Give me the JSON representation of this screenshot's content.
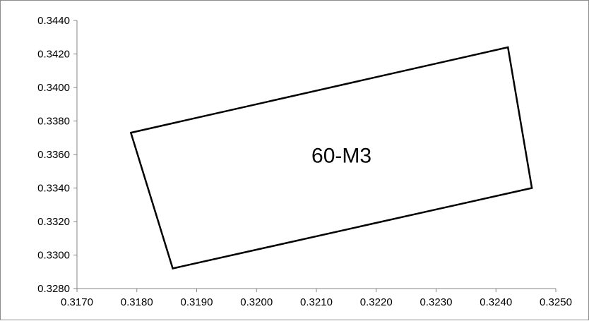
{
  "chart_data": {
    "type": "scatter",
    "title": "",
    "xlabel": "",
    "ylabel": "",
    "xlim": [
      0.317,
      0.325
    ],
    "ylim": [
      0.328,
      0.344
    ],
    "x_ticks": [
      "0.3170",
      "0.3180",
      "0.3190",
      "0.3200",
      "0.3210",
      "0.3220",
      "0.3230",
      "0.3240",
      "0.3250"
    ],
    "y_ticks": [
      "0.3280",
      "0.3300",
      "0.3320",
      "0.3340",
      "0.3360",
      "0.3380",
      "0.3400",
      "0.3420",
      "0.3440"
    ],
    "grid": false,
    "legend": "none",
    "series": [
      {
        "label": "60-M3",
        "closed": true,
        "color": "#000000",
        "points": [
          {
            "x": 0.3179,
            "y": 0.3373
          },
          {
            "x": 0.3242,
            "y": 0.3424
          },
          {
            "x": 0.3246,
            "y": 0.334
          },
          {
            "x": 0.3186,
            "y": 0.3292
          },
          {
            "x": 0.3179,
            "y": 0.3373
          }
        ]
      }
    ]
  }
}
